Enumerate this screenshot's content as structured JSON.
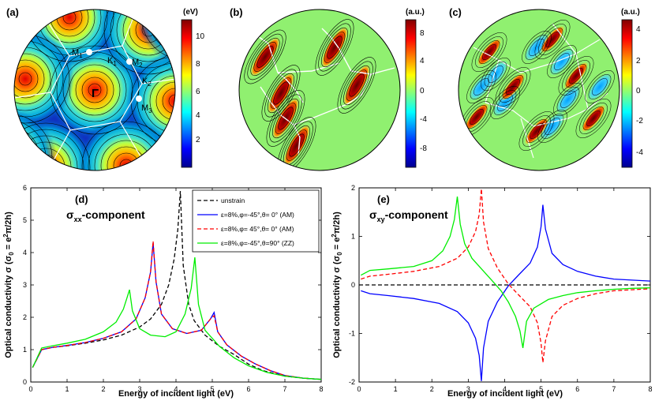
{
  "panels": {
    "a": {
      "label": "(a)",
      "unit": "(eV)",
      "ticks": [
        "10",
        "8",
        "6",
        "4",
        "2"
      ],
      "points": [
        "M1",
        "K1",
        "M2",
        "K2",
        "M3",
        "Γ"
      ]
    },
    "b": {
      "label": "(b)",
      "unit": "(a.u.)",
      "ticks": [
        "8",
        "4",
        "0",
        "-4",
        "-8"
      ]
    },
    "c": {
      "label": "(c)",
      "unit": "(a.u.)",
      "ticks": [
        "4",
        "2",
        "0",
        "-2",
        "-4"
      ]
    }
  },
  "point_labels": {
    "M1": {
      "main": "M",
      "sub": "1"
    },
    "K1": {
      "main": "K",
      "sub": "1"
    },
    "M2": {
      "main": "M",
      "sub": "2"
    },
    "K2": {
      "main": "K",
      "sub": "2"
    },
    "M3": {
      "main": "M",
      "sub": "3"
    },
    "G": {
      "main": "Γ"
    }
  },
  "colors": {
    "unstrain": "#000000",
    "am1": "#0000ff",
    "am2": "#ff0000",
    "zz": "#00ee00"
  },
  "chart_data": [
    {
      "type": "line",
      "panel": "(d)",
      "title": "σxx-component",
      "title_main": "σ",
      "title_sub": "xx",
      "title_rest": "-component",
      "xlabel": "Energy of incident light (eV)",
      "ylabel": "Optical conductivity σ (σ0 = e²π/2h)",
      "ylabel_main": "Optical conductivity σ (σ",
      "ylabel_sub": "0",
      "ylabel_mid": " = e",
      "ylabel_sup": "2",
      "ylabel_end": "π/2h)",
      "xlim": [
        0,
        8
      ],
      "ylim": [
        0,
        6
      ],
      "xticks": [
        "0",
        "1",
        "2",
        "3",
        "4",
        "5",
        "6",
        "7",
        "8"
      ],
      "yticks": [
        "0",
        "1",
        "2",
        "3",
        "4",
        "5",
        "6"
      ],
      "legend_position": "top-right",
      "series": [
        {
          "name": "unstrain",
          "style": "dashed",
          "x": [
            0.05,
            0.3,
            0.6,
            1.0,
            1.5,
            2.0,
            2.5,
            3.0,
            3.3,
            3.6,
            3.8,
            3.95,
            4.05,
            4.12,
            4.2,
            4.35,
            4.5,
            4.8,
            5.2,
            5.6,
            6.0,
            6.4,
            7.0,
            7.5,
            8.0
          ],
          "y": [
            0.45,
            1.0,
            1.07,
            1.12,
            1.2,
            1.3,
            1.45,
            1.7,
            1.95,
            2.4,
            3.0,
            3.8,
            4.7,
            5.9,
            3.6,
            2.4,
            1.9,
            1.45,
            1.1,
            0.85,
            0.55,
            0.35,
            0.18,
            0.12,
            0.08
          ]
        },
        {
          "name": "ε=8%,φ=-45°,θ= 0° (AM)",
          "style": "solid",
          "x": [
            0.05,
            0.3,
            0.6,
            1.0,
            1.5,
            2.0,
            2.5,
            2.9,
            3.15,
            3.3,
            3.37,
            3.45,
            3.6,
            3.9,
            4.3,
            4.7,
            4.95,
            5.05,
            5.15,
            5.4,
            5.8,
            6.2,
            6.6,
            7.0,
            7.5,
            8.0
          ],
          "y": [
            0.45,
            1.0,
            1.07,
            1.13,
            1.22,
            1.35,
            1.55,
            1.95,
            2.6,
            3.4,
            4.3,
            3.1,
            2.1,
            1.65,
            1.5,
            1.6,
            1.95,
            2.15,
            1.55,
            1.15,
            0.8,
            0.55,
            0.35,
            0.2,
            0.12,
            0.08
          ]
        },
        {
          "name": "ε=8%,φ= 45°,θ= 0° (AM)",
          "style": "dashed",
          "x": [
            0.05,
            0.3,
            0.6,
            1.0,
            1.5,
            2.0,
            2.5,
            2.9,
            3.15,
            3.3,
            3.37,
            3.45,
            3.6,
            3.9,
            4.3,
            4.7,
            4.95,
            5.05,
            5.15,
            5.4,
            5.8,
            6.2,
            6.6,
            7.0,
            7.5,
            8.0
          ],
          "y": [
            0.45,
            1.0,
            1.07,
            1.13,
            1.22,
            1.35,
            1.55,
            1.95,
            2.6,
            3.4,
            4.35,
            3.1,
            2.1,
            1.65,
            1.5,
            1.6,
            1.95,
            2.05,
            1.55,
            1.15,
            0.8,
            0.55,
            0.35,
            0.2,
            0.12,
            0.08
          ]
        },
        {
          "name": "ε=8%,φ=-45°,θ=90° (ZZ)",
          "style": "solid",
          "x": [
            0.05,
            0.3,
            0.6,
            1.0,
            1.5,
            2.0,
            2.35,
            2.55,
            2.65,
            2.72,
            2.8,
            3.0,
            3.3,
            3.7,
            4.0,
            4.25,
            4.42,
            4.52,
            4.62,
            4.8,
            5.2,
            5.6,
            6.0,
            6.5,
            7.0,
            7.5,
            8.0
          ],
          "y": [
            0.45,
            1.05,
            1.12,
            1.2,
            1.32,
            1.55,
            1.85,
            2.25,
            2.6,
            2.85,
            2.2,
            1.65,
            1.45,
            1.4,
            1.55,
            2.1,
            2.9,
            3.85,
            2.4,
            1.6,
            1.1,
            0.75,
            0.5,
            0.3,
            0.18,
            0.12,
            0.08
          ]
        }
      ]
    },
    {
      "type": "line",
      "panel": "(e)",
      "title": "σxy-component",
      "title_main": "σ",
      "title_sub": "xy",
      "title_rest": "-component",
      "xlabel": "Energy of incident light (eV)",
      "ylabel": "Optical conductivity σ (σ0 = e²π/2h)",
      "ylabel_main": "Optical conductivity σ (σ",
      "ylabel_sub": "0",
      "ylabel_mid": " = e",
      "ylabel_sup": "2",
      "ylabel_end": "π/2h)",
      "xlim": [
        0,
        8
      ],
      "ylim": [
        -2,
        2
      ],
      "xticks": [
        "0",
        "1",
        "2",
        "3",
        "4",
        "5",
        "6",
        "7",
        "8"
      ],
      "yticks": [
        "-2",
        "-1",
        "0",
        "1",
        "2"
      ],
      "series": [
        {
          "name": "unstrain",
          "style": "dashed",
          "x": [
            0,
            8
          ],
          "y": [
            0,
            0
          ]
        },
        {
          "name": "ε=8%,φ=-45°,θ= 0° (AM)",
          "style": "solid",
          "x": [
            0.05,
            0.3,
            0.8,
            1.5,
            2.2,
            2.7,
            3.0,
            3.2,
            3.3,
            3.36,
            3.42,
            3.55,
            3.8,
            4.1,
            4.4,
            4.7,
            4.9,
            5.0,
            5.05,
            5.12,
            5.3,
            5.6,
            6.0,
            6.5,
            7.0,
            7.5,
            8.0
          ],
          "y": [
            -0.12,
            -0.18,
            -0.22,
            -0.28,
            -0.38,
            -0.55,
            -0.78,
            -1.1,
            -1.45,
            -1.98,
            -1.3,
            -0.75,
            -0.35,
            -0.02,
            0.22,
            0.45,
            0.78,
            1.2,
            1.65,
            1.15,
            0.65,
            0.42,
            0.28,
            0.18,
            0.12,
            0.1,
            0.08
          ]
        },
        {
          "name": "ε=8%,φ= 45°,θ= 0° (AM)",
          "style": "dashed",
          "x": [
            0.05,
            0.3,
            0.8,
            1.5,
            2.2,
            2.7,
            3.0,
            3.2,
            3.3,
            3.36,
            3.42,
            3.55,
            3.8,
            4.1,
            4.4,
            4.7,
            4.9,
            5.0,
            5.05,
            5.12,
            5.3,
            5.6,
            6.0,
            6.5,
            7.0,
            7.5,
            8.0
          ],
          "y": [
            0.12,
            0.18,
            0.22,
            0.28,
            0.38,
            0.55,
            0.78,
            1.1,
            1.45,
            1.98,
            1.3,
            0.75,
            0.35,
            0.02,
            -0.22,
            -0.45,
            -0.78,
            -1.2,
            -1.6,
            -1.15,
            -0.65,
            -0.42,
            -0.28,
            -0.18,
            -0.12,
            -0.1,
            -0.08
          ]
        },
        {
          "name": "ε=8%,φ=-45°,θ=90° (ZZ)",
          "style": "solid",
          "x": [
            0.05,
            0.3,
            0.8,
            1.5,
            2.0,
            2.3,
            2.5,
            2.62,
            2.7,
            2.78,
            2.9,
            3.1,
            3.4,
            3.7,
            3.9,
            4.1,
            4.3,
            4.42,
            4.5,
            4.6,
            4.8,
            5.2,
            5.6,
            6.0,
            6.5,
            7.0,
            7.5,
            8.0
          ],
          "y": [
            0.2,
            0.3,
            0.33,
            0.38,
            0.5,
            0.7,
            1.0,
            1.35,
            1.82,
            1.25,
            0.85,
            0.55,
            0.3,
            0.05,
            -0.12,
            -0.35,
            -0.65,
            -0.95,
            -1.3,
            -0.75,
            -0.48,
            -0.3,
            -0.22,
            -0.16,
            -0.12,
            -0.09,
            -0.07,
            -0.06
          ]
        }
      ]
    }
  ]
}
